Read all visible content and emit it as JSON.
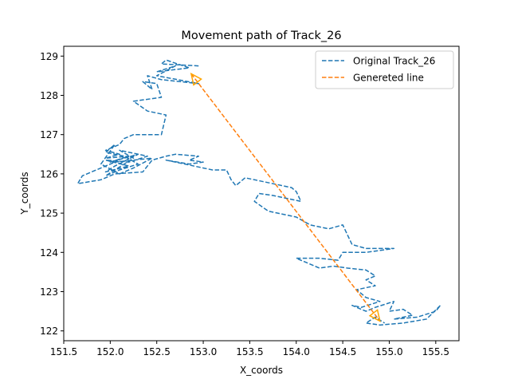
{
  "chart_data": {
    "type": "line",
    "title": "Movement path of Track_26",
    "xlabel": "X_coords",
    "ylabel": "Y_coords",
    "xlim": [
      151.5,
      155.75
    ],
    "ylim": [
      121.75,
      129.25
    ],
    "xticks": [
      "151.5",
      "152.0",
      "152.5",
      "153.0",
      "153.5",
      "154.0",
      "154.5",
      "155.0",
      "155.5"
    ],
    "xtick_values": [
      151.5,
      152.0,
      152.5,
      153.0,
      153.5,
      154.0,
      154.5,
      155.0,
      155.5
    ],
    "yticks": [
      "122",
      "123",
      "124",
      "125",
      "126",
      "127",
      "128",
      "129"
    ],
    "ytick_values": [
      122,
      123,
      124,
      125,
      126,
      127,
      128,
      129
    ],
    "grid": false,
    "legend_position": "top-right",
    "series": [
      {
        "name": "Original Track_26",
        "color": "#1f77b4",
        "style": "dashed",
        "points": [
          [
            152.95,
            128.75
          ],
          [
            152.55,
            128.8
          ],
          [
            152.6,
            128.9
          ],
          [
            152.85,
            128.7
          ],
          [
            152.5,
            128.6
          ],
          [
            152.7,
            128.75
          ],
          [
            152.5,
            128.5
          ],
          [
            152.95,
            128.3
          ],
          [
            152.55,
            128.4
          ],
          [
            152.4,
            128.5
          ],
          [
            152.45,
            128.15
          ],
          [
            152.35,
            128.35
          ],
          [
            152.5,
            128.3
          ],
          [
            152.55,
            127.95
          ],
          [
            152.25,
            127.85
          ],
          [
            152.4,
            127.6
          ],
          [
            152.6,
            127.5
          ],
          [
            152.55,
            127.0
          ],
          [
            152.25,
            127.0
          ],
          [
            152.15,
            126.9
          ],
          [
            152.1,
            126.75
          ],
          [
            151.95,
            126.6
          ],
          [
            152.1,
            126.5
          ],
          [
            151.95,
            126.4
          ],
          [
            152.2,
            126.45
          ],
          [
            152.0,
            126.3
          ],
          [
            152.3,
            126.5
          ],
          [
            152.05,
            126.2
          ],
          [
            151.95,
            126.05
          ],
          [
            152.2,
            126.2
          ],
          [
            151.95,
            126.35
          ],
          [
            152.2,
            126.3
          ],
          [
            152.4,
            126.45
          ],
          [
            152.1,
            126.6
          ],
          [
            152.25,
            126.4
          ],
          [
            151.95,
            125.95
          ],
          [
            152.1,
            126.1
          ],
          [
            152.3,
            126.25
          ],
          [
            152.15,
            126.45
          ],
          [
            151.95,
            126.55
          ],
          [
            152.05,
            126.75
          ],
          [
            151.9,
            126.25
          ],
          [
            152.1,
            126.0
          ],
          [
            152.25,
            126.15
          ],
          [
            152.45,
            126.4
          ],
          [
            152.05,
            126.3
          ],
          [
            151.7,
            125.95
          ],
          [
            151.65,
            125.75
          ],
          [
            151.9,
            125.85
          ],
          [
            152.05,
            126.0
          ],
          [
            152.35,
            126.05
          ],
          [
            152.45,
            126.35
          ],
          [
            152.6,
            126.45
          ],
          [
            152.7,
            126.5
          ],
          [
            152.95,
            126.45
          ],
          [
            152.85,
            126.35
          ],
          [
            153.0,
            126.3
          ],
          [
            152.85,
            126.25
          ],
          [
            152.6,
            126.35
          ],
          [
            153.1,
            126.1
          ],
          [
            153.25,
            126.1
          ],
          [
            153.3,
            125.85
          ],
          [
            153.35,
            125.7
          ],
          [
            153.45,
            125.9
          ],
          [
            153.55,
            125.85
          ],
          [
            153.75,
            125.75
          ],
          [
            153.95,
            125.65
          ],
          [
            154.0,
            125.55
          ],
          [
            154.05,
            125.3
          ],
          [
            153.75,
            125.45
          ],
          [
            153.6,
            125.5
          ],
          [
            153.55,
            125.3
          ],
          [
            153.7,
            125.05
          ],
          [
            154.0,
            124.9
          ],
          [
            154.15,
            124.7
          ],
          [
            154.35,
            124.6
          ],
          [
            154.5,
            124.7
          ],
          [
            154.55,
            124.45
          ],
          [
            154.6,
            124.2
          ],
          [
            154.75,
            124.1
          ],
          [
            155.05,
            124.1
          ],
          [
            154.75,
            124.0
          ],
          [
            154.5,
            124.0
          ],
          [
            154.45,
            123.8
          ],
          [
            154.25,
            123.85
          ],
          [
            154.0,
            123.85
          ],
          [
            154.1,
            123.75
          ],
          [
            154.25,
            123.6
          ],
          [
            154.4,
            123.65
          ],
          [
            154.55,
            123.6
          ],
          [
            154.75,
            123.55
          ],
          [
            154.85,
            123.4
          ],
          [
            154.75,
            123.3
          ],
          [
            154.85,
            123.15
          ],
          [
            154.65,
            123.05
          ],
          [
            154.75,
            122.85
          ],
          [
            154.9,
            122.75
          ],
          [
            154.7,
            122.6
          ],
          [
            154.6,
            122.65
          ],
          [
            154.75,
            122.5
          ],
          [
            154.85,
            122.6
          ],
          [
            155.05,
            122.75
          ],
          [
            155.0,
            122.5
          ],
          [
            155.15,
            122.55
          ],
          [
            155.25,
            122.4
          ],
          [
            155.05,
            122.3
          ],
          [
            155.3,
            122.35
          ],
          [
            155.5,
            122.5
          ],
          [
            155.55,
            122.65
          ],
          [
            155.4,
            122.3
          ],
          [
            155.15,
            122.2
          ],
          [
            154.9,
            122.15
          ],
          [
            154.75,
            122.2
          ],
          [
            154.85,
            122.35
          ],
          [
            154.95,
            122.2
          ]
        ]
      },
      {
        "name": "Genereted line",
        "color": "#ff7f0e",
        "style": "dashed",
        "points": [
          [
            152.87,
            128.55
          ],
          [
            154.9,
            122.25
          ]
        ]
      }
    ]
  }
}
